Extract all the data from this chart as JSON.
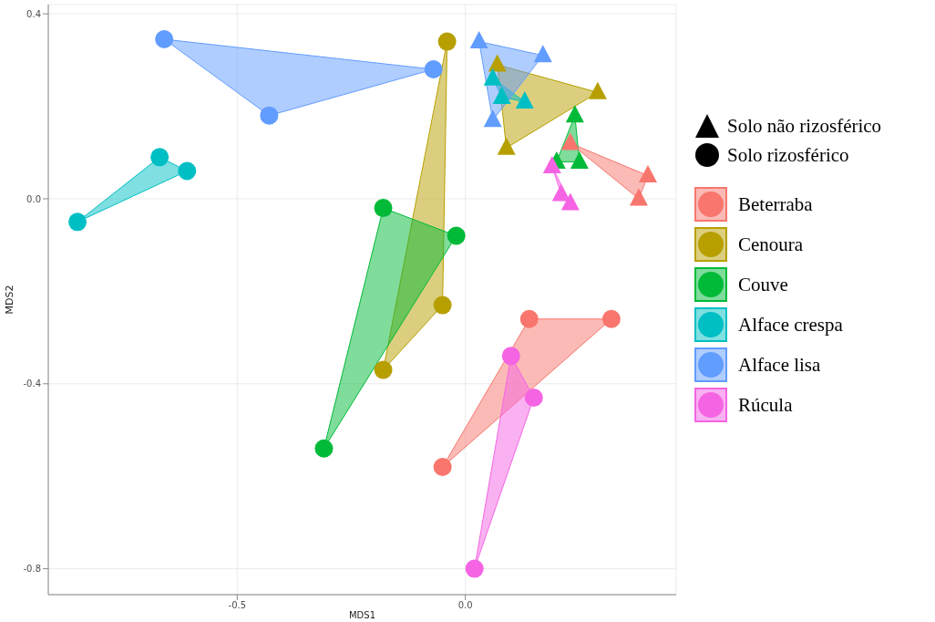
{
  "chart_data": {
    "type": "scatter",
    "xlabel": "MDS1",
    "ylabel": "MDS2",
    "xlim": [
      -0.914,
      0.462
    ],
    "ylim": [
      -0.856,
      0.42
    ],
    "xticks": [
      {
        "value": -0.5,
        "label": "-0.5"
      },
      {
        "value": 0,
        "label": "0.0"
      }
    ],
    "yticks": [
      {
        "value": -0.8,
        "label": "-0.8"
      },
      {
        "value": -0.4,
        "label": "-0.4"
      },
      {
        "value": 0,
        "label": "0.0"
      },
      {
        "value": 0.4,
        "label": "0.4"
      }
    ],
    "grid": true,
    "legend": "right",
    "annotations": [
      "Solo não rizosférico",
      "Solo rizosférico"
    ],
    "series": [
      {
        "color": "#f8766d",
        "marker": "triangle",
        "x": [
          0.23,
          0.4,
          0.38
        ],
        "values": [
          0.12,
          0.05,
          0.0
        ]
      },
      {
        "color": "#b79f00",
        "marker": "triangle",
        "x": [
          0.07,
          0.29,
          0.09
        ],
        "values": [
          0.29,
          0.23,
          0.11
        ]
      },
      {
        "color": "#00ba38",
        "marker": "triangle",
        "x": [
          0.24,
          0.2,
          0.25
        ],
        "values": [
          0.18,
          0.08,
          0.08
        ]
      },
      {
        "color": "#00bfc4",
        "marker": "triangle",
        "x": [
          0.06,
          0.08,
          0.13
        ],
        "values": [
          0.26,
          0.22,
          0.21
        ]
      },
      {
        "color": "#619cff",
        "marker": "triangle",
        "x": [
          0.03,
          0.17,
          0.06
        ],
        "values": [
          0.34,
          0.31,
          0.17
        ]
      },
      {
        "color": "#f564e3",
        "marker": "triangle",
        "x": [
          0.19,
          0.21,
          0.23
        ],
        "values": [
          0.07,
          0.01,
          -0.01
        ]
      },
      {
        "name": "Beterraba",
        "color": "#f8766d",
        "marker": "circle",
        "x": [
          0.14,
          0.32,
          -0.05
        ],
        "values": [
          -0.26,
          -0.26,
          -0.58
        ]
      },
      {
        "name": "Cenoura",
        "color": "#b79f00",
        "marker": "circle",
        "x": [
          -0.04,
          -0.05,
          -0.18
        ],
        "values": [
          0.34,
          -0.23,
          -0.37
        ]
      },
      {
        "name": "Couve",
        "color": "#00ba38",
        "marker": "circle",
        "x": [
          -0.18,
          -0.02,
          -0.31
        ],
        "values": [
          -0.02,
          -0.08,
          -0.54
        ]
      },
      {
        "name": "Alface crespa",
        "color": "#00bfc4",
        "marker": "circle",
        "x": [
          -0.85,
          -0.67,
          -0.61
        ],
        "values": [
          -0.05,
          0.09,
          0.06
        ]
      },
      {
        "name": "Alface lisa",
        "color": "#619cff",
        "marker": "circle",
        "x": [
          -0.66,
          -0.07,
          -0.43
        ],
        "values": [
          0.345,
          0.28,
          0.18
        ]
      },
      {
        "name": "Rúcula",
        "color": "#f564e3",
        "marker": "circle",
        "x": [
          0.1,
          0.15,
          0.02
        ],
        "values": [
          -0.34,
          -0.43,
          -0.8
        ]
      }
    ]
  }
}
